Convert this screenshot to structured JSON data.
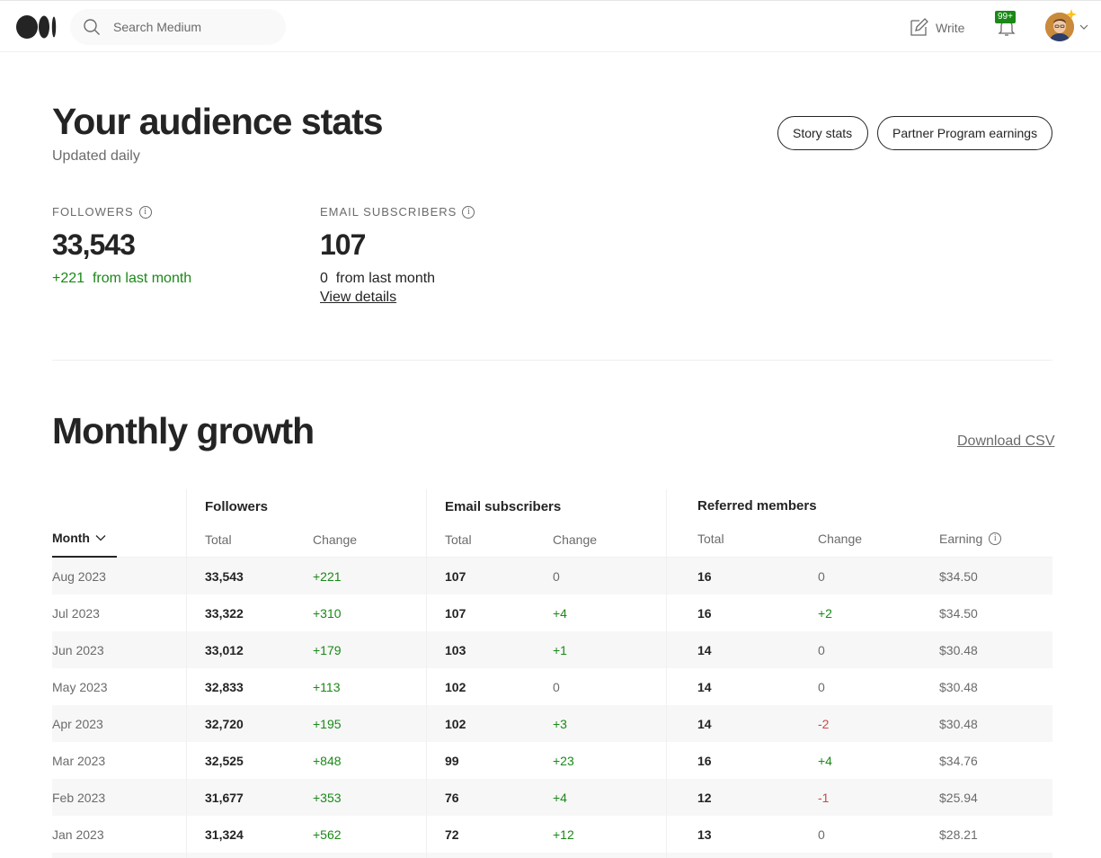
{
  "search": {
    "placeholder": "Search Medium"
  },
  "header": {
    "write_label": "Write",
    "notifications_badge": "99+"
  },
  "page": {
    "title": "Your audience stats",
    "subtitle": "Updated daily",
    "story_stats_button": "Story stats",
    "partner_button": "Partner Program earnings"
  },
  "stats": {
    "followers": {
      "label": "FOLLOWERS",
      "value": "33,543",
      "change": "+221",
      "change_suffix": "from last month"
    },
    "email": {
      "label": "EMAIL SUBSCRIBERS",
      "value": "107",
      "change": "0",
      "change_suffix": "from last month",
      "link": "View details"
    }
  },
  "growth": {
    "title": "Monthly growth",
    "download": "Download CSV",
    "groups": {
      "followers": "Followers",
      "email": "Email subscribers",
      "referred": "Referred members"
    },
    "columns": {
      "month": "Month",
      "total": "Total",
      "change": "Change",
      "earning": "Earning"
    },
    "rows": [
      {
        "month": "Aug 2023",
        "f_total": "33,543",
        "f_change": "+221",
        "e_total": "107",
        "e_change": "0",
        "r_total": "16",
        "r_change": "0",
        "earning": "$34.50"
      },
      {
        "month": "Jul 2023",
        "f_total": "33,322",
        "f_change": "+310",
        "e_total": "107",
        "e_change": "+4",
        "r_total": "16",
        "r_change": "+2",
        "earning": "$34.50"
      },
      {
        "month": "Jun 2023",
        "f_total": "33,012",
        "f_change": "+179",
        "e_total": "103",
        "e_change": "+1",
        "r_total": "14",
        "r_change": "0",
        "earning": "$30.48"
      },
      {
        "month": "May 2023",
        "f_total": "32,833",
        "f_change": "+113",
        "e_total": "102",
        "e_change": "0",
        "r_total": "14",
        "r_change": "0",
        "earning": "$30.48"
      },
      {
        "month": "Apr 2023",
        "f_total": "32,720",
        "f_change": "+195",
        "e_total": "102",
        "e_change": "+3",
        "r_total": "14",
        "r_change": "-2",
        "earning": "$30.48"
      },
      {
        "month": "Mar 2023",
        "f_total": "32,525",
        "f_change": "+848",
        "e_total": "99",
        "e_change": "+23",
        "r_total": "16",
        "r_change": "+4",
        "earning": "$34.76"
      },
      {
        "month": "Feb 2023",
        "f_total": "31,677",
        "f_change": "+353",
        "e_total": "76",
        "e_change": "+4",
        "r_total": "12",
        "r_change": "-1",
        "earning": "$25.94"
      },
      {
        "month": "Jan 2023",
        "f_total": "31,324",
        "f_change": "+562",
        "e_total": "72",
        "e_change": "+12",
        "r_total": "13",
        "r_change": "0",
        "earning": "$28.21"
      }
    ]
  },
  "colors": {
    "positive": "#1a8917",
    "negative": "#c94a4a",
    "neutral": "#6b6b6b"
  }
}
